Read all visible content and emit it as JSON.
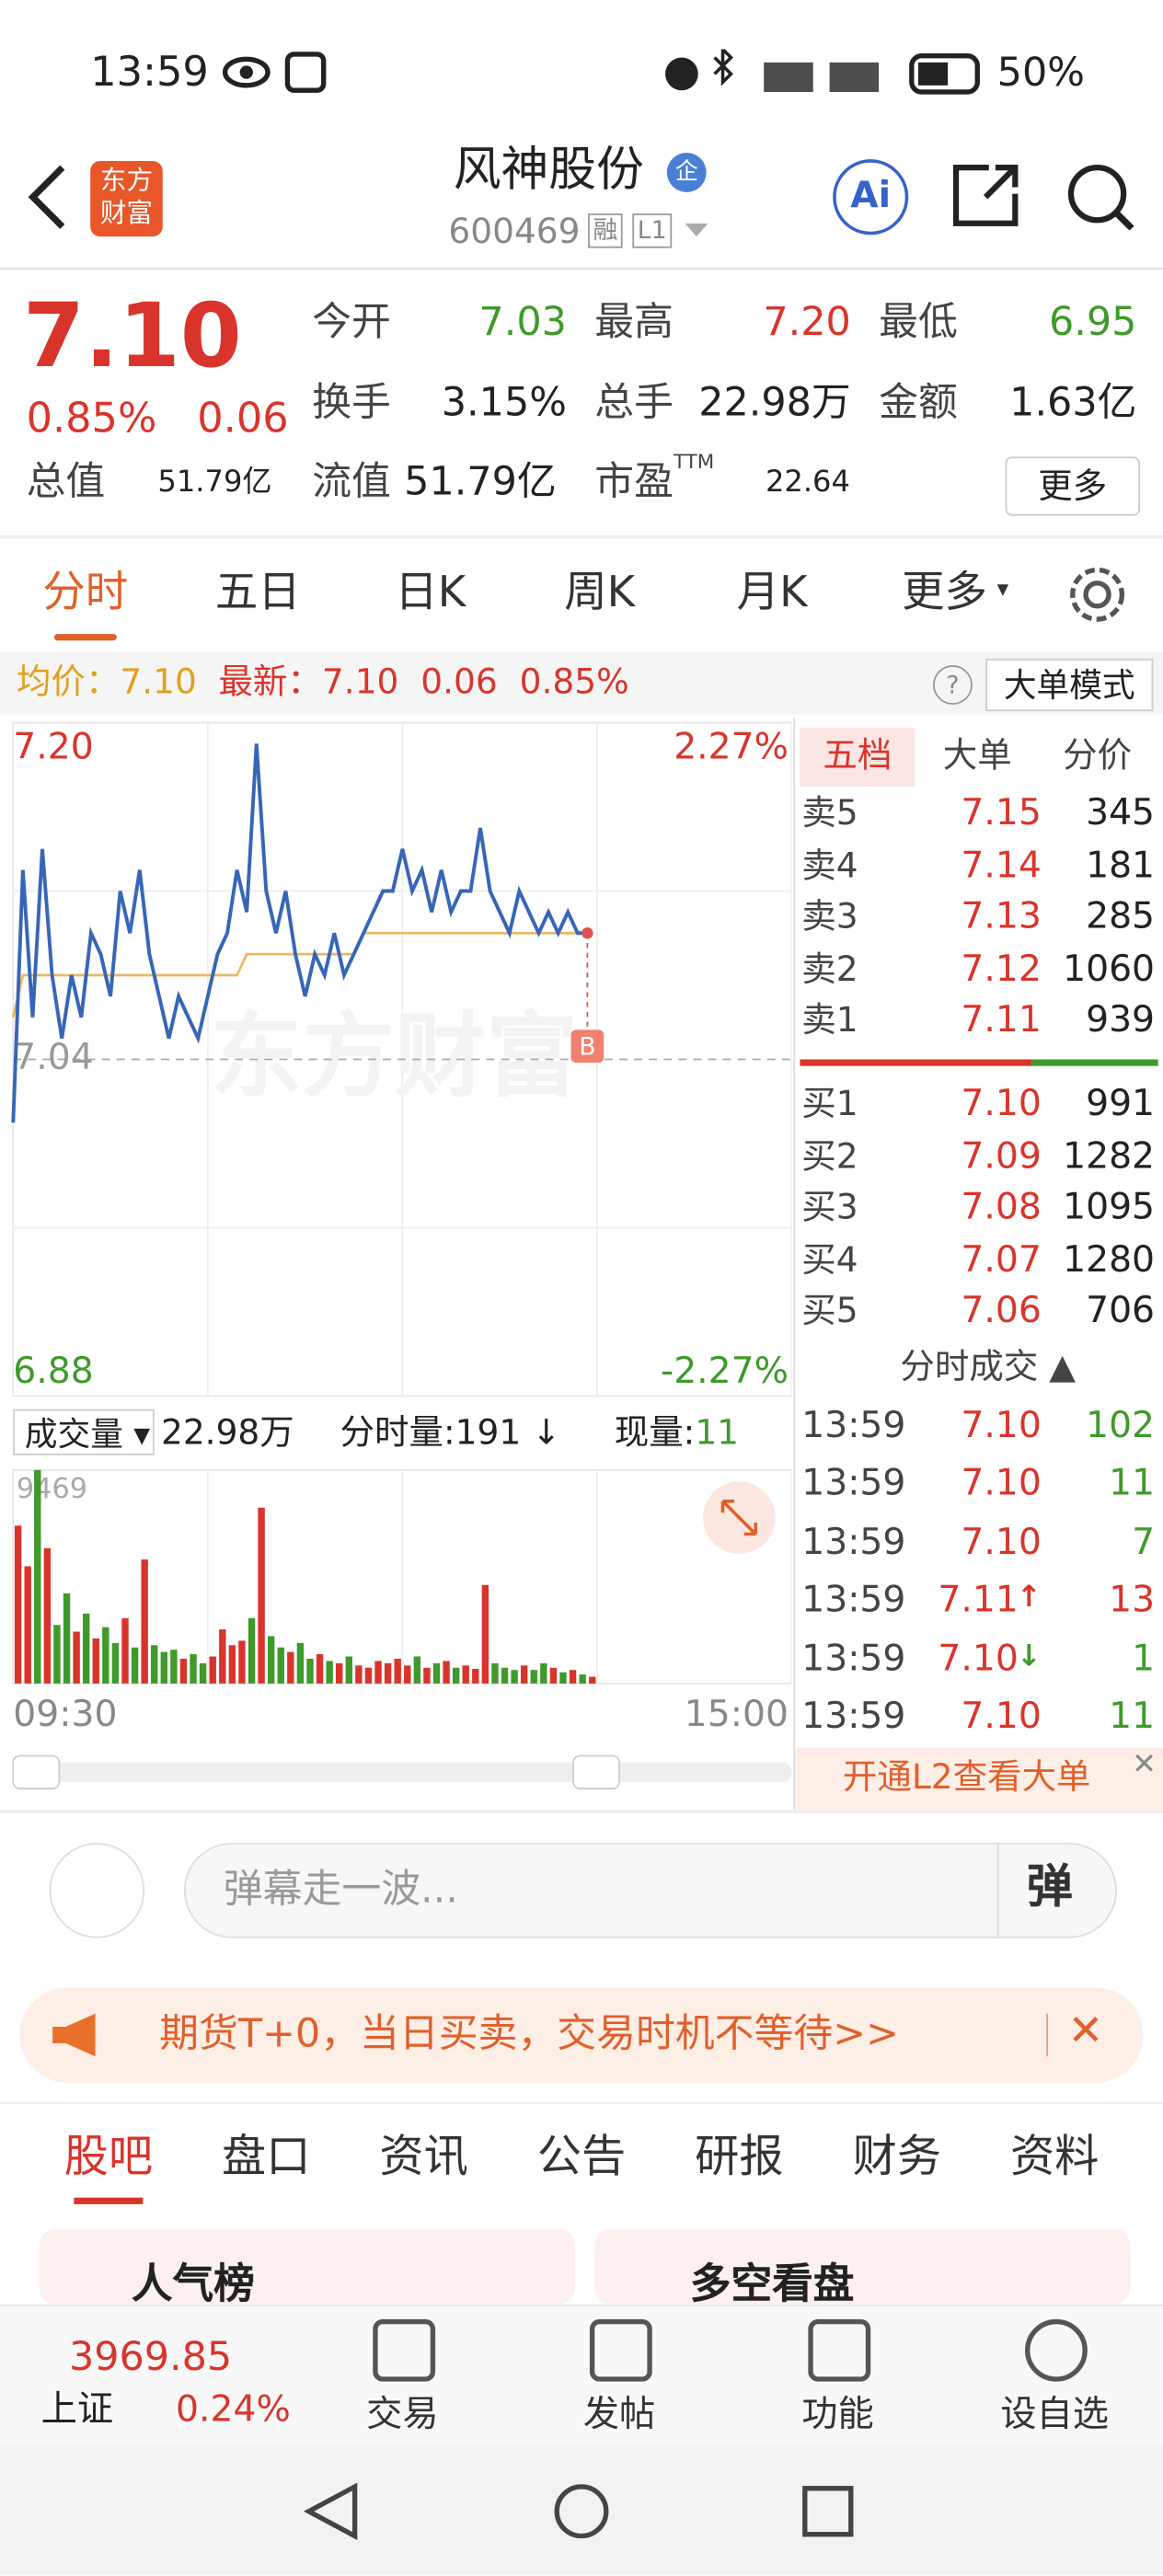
{
  "status_bar": {
    "time": "13:59",
    "battery": "50%"
  },
  "header": {
    "logo": [
      "东方",
      "财富"
    ],
    "title": "风神股份",
    "badge": "企",
    "code": "600469",
    "tags": [
      "融",
      "L1"
    ],
    "ai": "Ai"
  },
  "quote": {
    "price": "7.10",
    "change_pct": "0.85%",
    "change": "0.06",
    "stats": [
      {
        "label": "今开",
        "value": "7.03"
      },
      {
        "label": "最高",
        "value": "7.20"
      },
      {
        "label": "最低",
        "value": "6.95"
      },
      {
        "label": "换手",
        "value": "3.15%"
      },
      {
        "label": "总手",
        "value": "22.98万"
      },
      {
        "label": "金额",
        "value": "1.63亿"
      },
      {
        "label": "总值",
        "value": "51.79亿"
      },
      {
        "label": "流值",
        "value": "51.79亿"
      },
      {
        "label": "市盈",
        "sup": "TTM",
        "value": "22.64"
      }
    ],
    "more": "更多"
  },
  "tabs": [
    "分时",
    "五日",
    "日K",
    "周K",
    "月K",
    "更多"
  ],
  "info_line": {
    "avg_label": "均价：",
    "avg": "7.10",
    "latest_label": "最新：",
    "latest": "7.10",
    "change": "0.06",
    "pct": "0.85%",
    "help": "?",
    "mode": "大单模式"
  },
  "intraday": {
    "type": "line",
    "watermark": "东方财富",
    "ylim": [
      6.88,
      7.2
    ],
    "yticks": [
      {
        "value": 7.2,
        "label": "7.20"
      },
      {
        "value": 7.04,
        "label": "7.04"
      },
      {
        "value": 6.88,
        "label": "6.88"
      }
    ],
    "right_labels": [
      "2.27%",
      "-2.27%"
    ],
    "marker": "B",
    "series": [
      {
        "name": "价格",
        "color": "#3766b8",
        "values": [
          7.01,
          7.13,
          7.06,
          7.14,
          7.08,
          7.05,
          7.08,
          7.06,
          7.1,
          7.09,
          7.07,
          7.12,
          7.1,
          7.13,
          7.09,
          7.07,
          7.05,
          7.07,
          7.06,
          7.05,
          7.07,
          7.09,
          7.1,
          7.13,
          7.11,
          7.19,
          7.12,
          7.1,
          7.12,
          7.09,
          7.07,
          7.09,
          7.08,
          7.1,
          7.08,
          7.09,
          7.1,
          7.11,
          7.12,
          7.12,
          7.14,
          7.12,
          7.13,
          7.11,
          7.13,
          7.11,
          7.12,
          7.12,
          7.15,
          7.12,
          7.11,
          7.1,
          7.12,
          7.11,
          7.1,
          7.11,
          7.1,
          7.11,
          7.1,
          7.1
        ]
      },
      {
        "name": "均价",
        "color": "#e8b960",
        "values": [
          7.06,
          7.08,
          7.08,
          7.08,
          7.08,
          7.08,
          7.08,
          7.08,
          7.08,
          7.08,
          7.08,
          7.08,
          7.08,
          7.08,
          7.08,
          7.08,
          7.08,
          7.08,
          7.08,
          7.08,
          7.08,
          7.08,
          7.08,
          7.08,
          7.09,
          7.09,
          7.09,
          7.09,
          7.09,
          7.09,
          7.09,
          7.09,
          7.09,
          7.09,
          7.09,
          7.09,
          7.1,
          7.1,
          7.1,
          7.1,
          7.1,
          7.1,
          7.1,
          7.1,
          7.1,
          7.1,
          7.1,
          7.1,
          7.1,
          7.1,
          7.1,
          7.1,
          7.1,
          7.1,
          7.1,
          7.1,
          7.1,
          7.1,
          7.1,
          7.1
        ]
      }
    ]
  },
  "volume": {
    "label": "成交量",
    "total": "22.98万",
    "minute": "分时量:191",
    "arrow": "↓",
    "now_label": "现量:",
    "now": "11",
    "ylim": [
      0,
      9469
    ],
    "yticks": [
      9469
    ],
    "xlabels": [
      "09:30",
      "15:00"
    ],
    "values": [
      7000,
      5200,
      9469,
      6000,
      2600,
      4000,
      2300,
      3100,
      2000,
      2500,
      1800,
      2900,
      1600,
      5500,
      1700,
      1400,
      1500,
      1100,
      1300,
      900,
      1200,
      2400,
      1700,
      1900,
      2900,
      7800,
      2100,
      1600,
      1400,
      1800,
      1100,
      1300,
      1000,
      900,
      1200,
      800,
      700,
      1000,
      900,
      1100,
      800,
      1200,
      700,
      900,
      1000,
      700,
      800,
      650,
      4370,
      900,
      700,
      600,
      800,
      600,
      900,
      700,
      500,
      600,
      400,
      300
    ],
    "up_color": "#d9342b",
    "down_color": "#3f9a2b"
  },
  "order_book": {
    "tabs": [
      "五档",
      "大单",
      "分价"
    ],
    "sells": [
      {
        "label": "卖5",
        "price": "7.15",
        "vol": "345"
      },
      {
        "label": "卖4",
        "price": "7.14",
        "vol": "181"
      },
      {
        "label": "卖3",
        "price": "7.13",
        "vol": "285"
      },
      {
        "label": "卖2",
        "price": "7.12",
        "vol": "1060"
      },
      {
        "label": "卖1",
        "price": "7.11",
        "vol": "939"
      }
    ],
    "buys": [
      {
        "label": "买1",
        "price": "7.10",
        "vol": "991"
      },
      {
        "label": "买2",
        "price": "7.09",
        "vol": "1282"
      },
      {
        "label": "买3",
        "price": "7.08",
        "vol": "1095"
      },
      {
        "label": "买4",
        "price": "7.07",
        "vol": "1280"
      },
      {
        "label": "买5",
        "price": "7.06",
        "vol": "706"
      }
    ],
    "trades_title": "分时成交",
    "trades": [
      {
        "time": "13:59",
        "price": "7.10",
        "vol": "102"
      },
      {
        "time": "13:59",
        "price": "7.10",
        "vol": "11"
      },
      {
        "time": "13:59",
        "price": "7.10",
        "vol": "7"
      },
      {
        "time": "13:59",
        "price": "7.11",
        "arrow": "↑",
        "vol": "13"
      },
      {
        "time": "13:59",
        "price": "7.10",
        "arrow": "↓",
        "vol": "1"
      },
      {
        "time": "13:59",
        "price": "7.10",
        "vol": "11"
      }
    ],
    "l2": "开通L2查看大单"
  },
  "danmaku": {
    "placeholder": "弹幕走一波...",
    "button": "弹"
  },
  "banner": {
    "text": "期货T+0，当日买卖，交易时机不等待>>"
  },
  "tabs2": [
    "股吧",
    "盘口",
    "资讯",
    "公告",
    "研报",
    "财务",
    "资料"
  ],
  "cards": [
    "人气榜",
    "多空看盘"
  ],
  "bottom": {
    "index_value": "3969.85",
    "index_name": "上证",
    "index_pct": "0.24%",
    "items": [
      "交易",
      "发帖",
      "功能",
      "设自选"
    ]
  }
}
